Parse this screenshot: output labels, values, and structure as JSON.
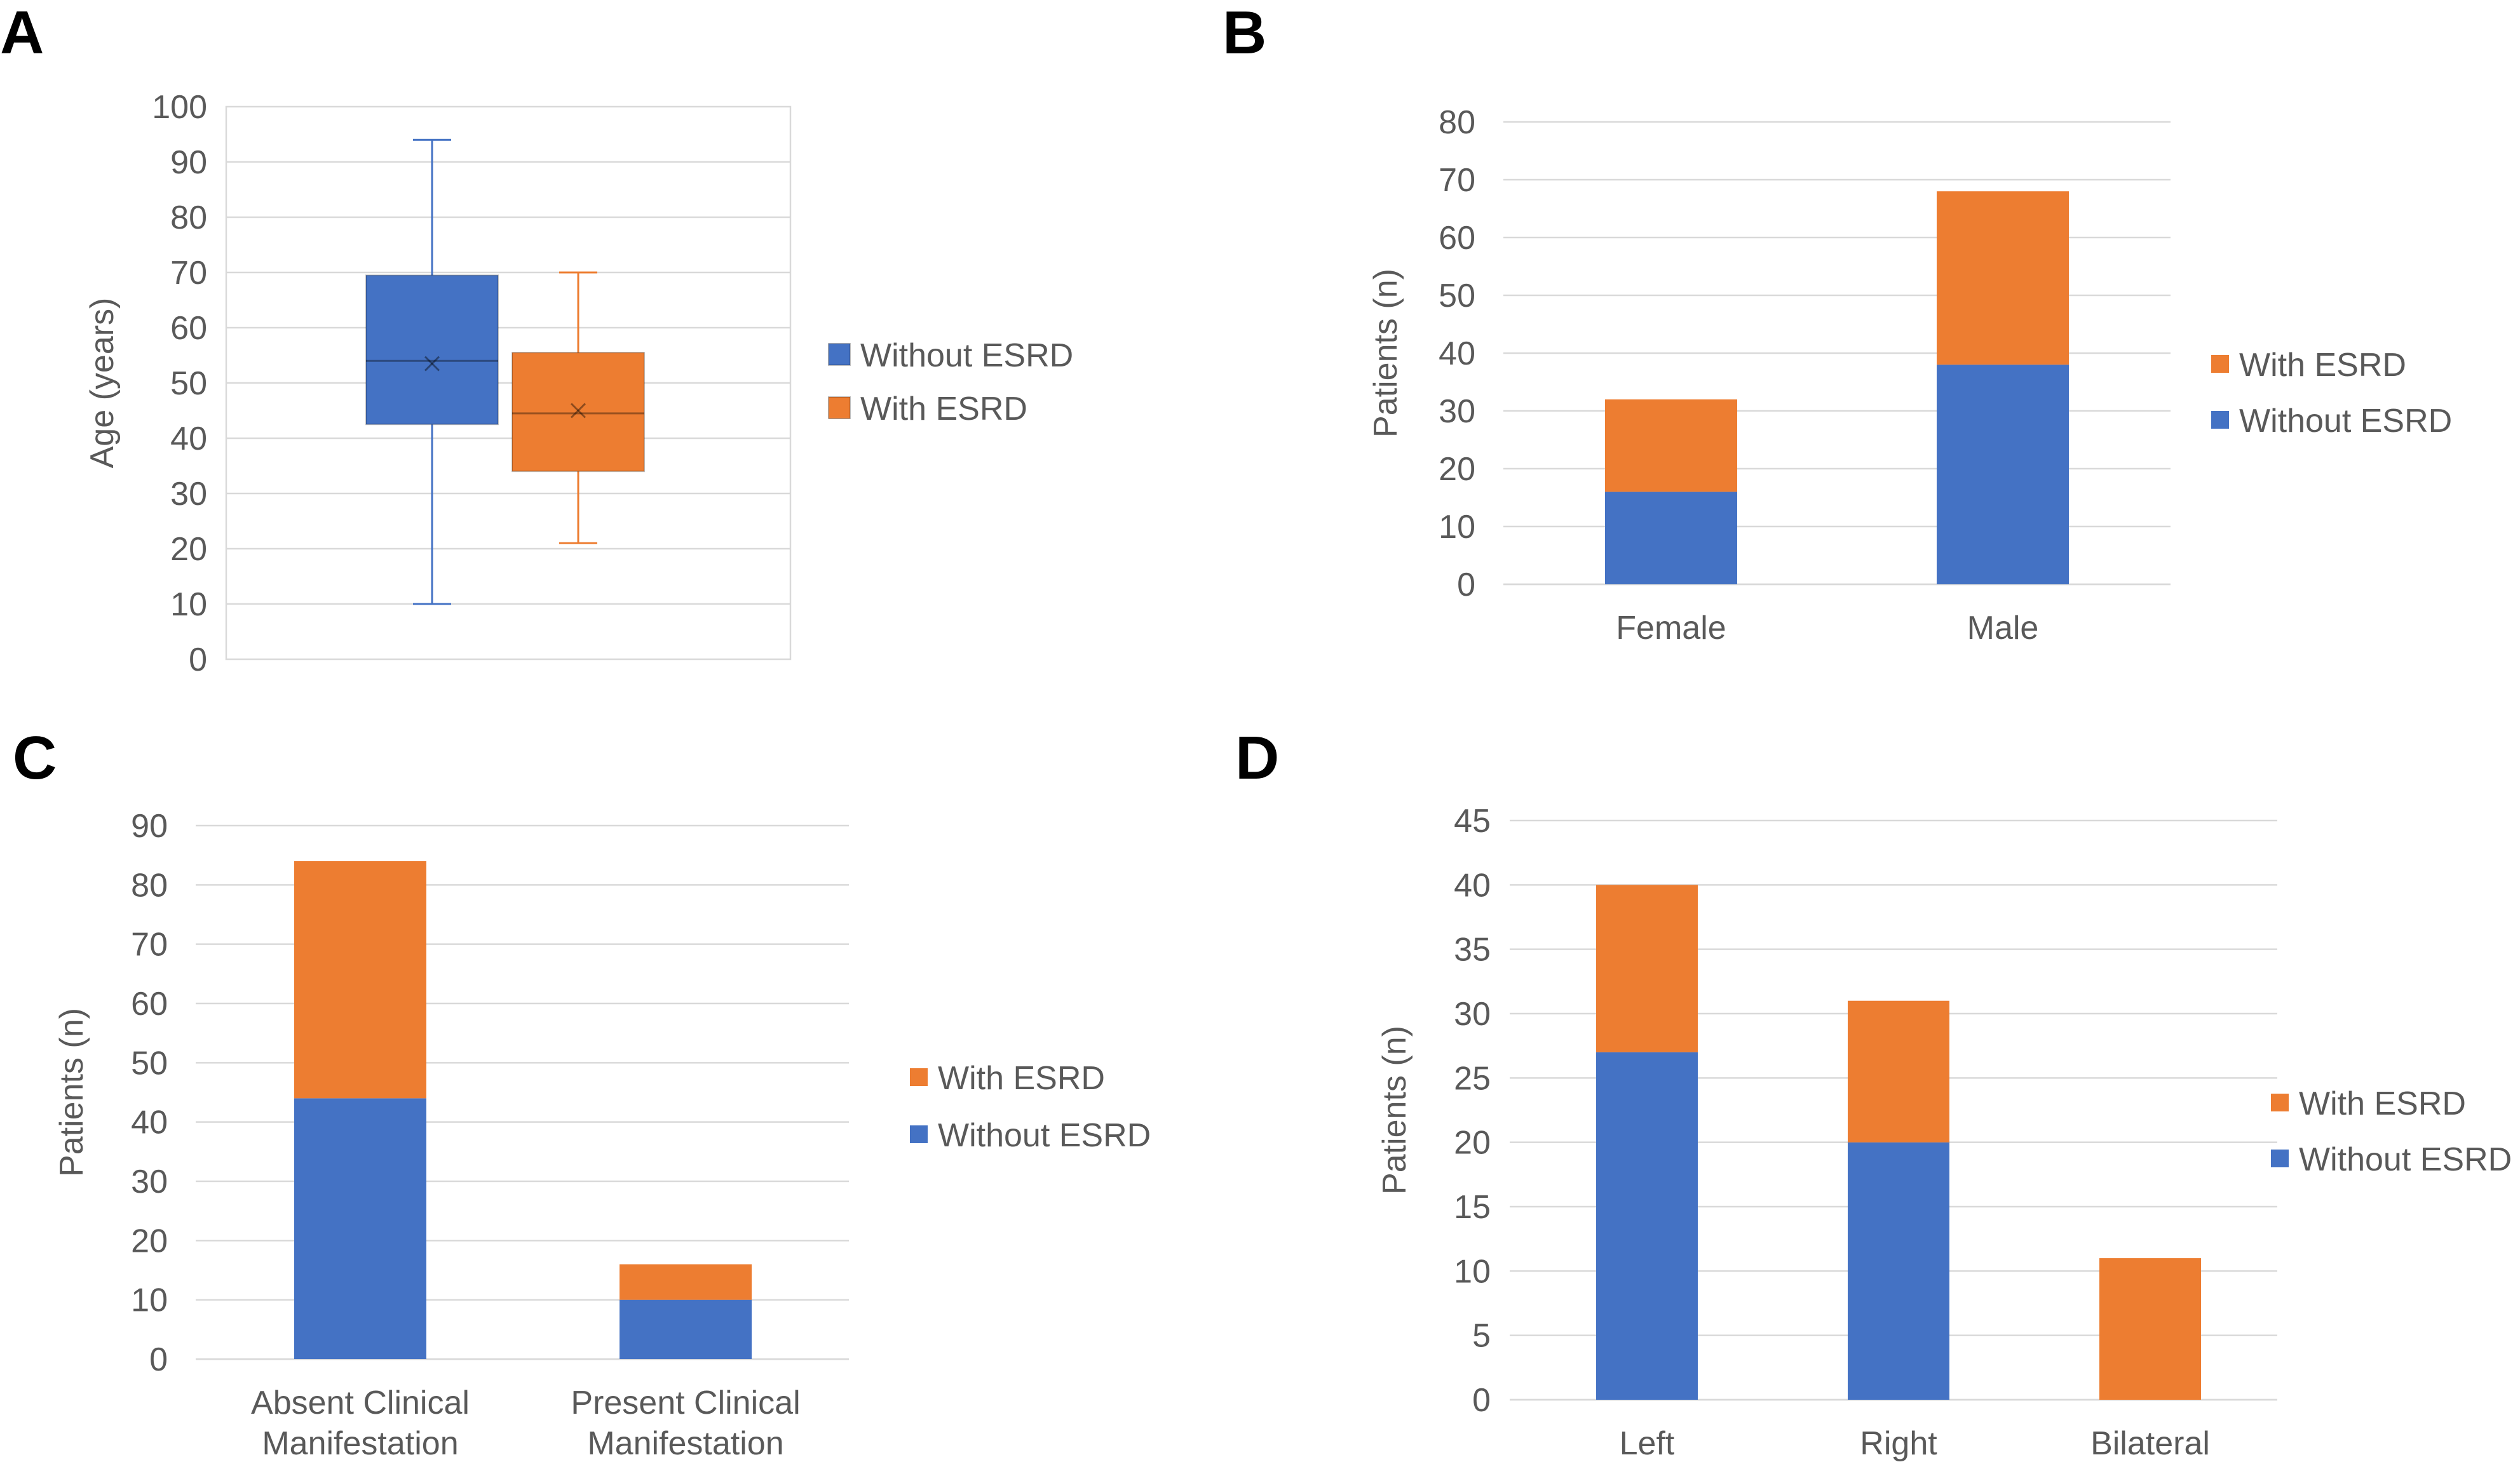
{
  "chart_data": [
    {
      "panel": "A",
      "type": "box",
      "ylabel": "Age (years)",
      "ylim": [
        0,
        100
      ],
      "yticks": [
        0,
        10,
        20,
        30,
        40,
        50,
        60,
        70,
        80,
        90,
        100
      ],
      "series": [
        {
          "name": "Without ESRD",
          "color": "#4472c4",
          "min": 10,
          "q1": 42.5,
          "median": 54,
          "q3": 69.5,
          "max": 94,
          "mean": 53.5
        },
        {
          "name": "With ESRD",
          "color": "#ed7d31",
          "min": 21,
          "q1": 34,
          "median": 44.5,
          "q3": 55.5,
          "max": 70,
          "mean": 45
        }
      ],
      "legend": [
        "Without ESRD",
        "With ESRD"
      ]
    },
    {
      "panel": "B",
      "type": "bar",
      "stacked": true,
      "ylabel": "Patients (n)",
      "ylim": [
        0,
        80
      ],
      "yticks": [
        0,
        10,
        20,
        30,
        40,
        50,
        60,
        70,
        80
      ],
      "categories": [
        [
          "Female"
        ],
        [
          "Male"
        ]
      ],
      "series": [
        {
          "name": "Without ESRD",
          "color": "#4472c4",
          "values": [
            16,
            38
          ]
        },
        {
          "name": "With ESRD",
          "color": "#ed7d31",
          "values": [
            16,
            30
          ]
        }
      ],
      "legend": [
        "With ESRD",
        "Without ESRD"
      ]
    },
    {
      "panel": "C",
      "type": "bar",
      "stacked": true,
      "ylabel": "Patients (n)",
      "ylim": [
        0,
        90
      ],
      "yticks": [
        0,
        10,
        20,
        30,
        40,
        50,
        60,
        70,
        80,
        90
      ],
      "categories": [
        [
          "Absent Clinical",
          "Manifestation"
        ],
        [
          "Present Clinical",
          "Manifestation"
        ]
      ],
      "series": [
        {
          "name": "Without ESRD",
          "color": "#4472c4",
          "values": [
            44,
            10
          ]
        },
        {
          "name": "With ESRD",
          "color": "#ed7d31",
          "values": [
            40,
            6
          ]
        }
      ],
      "legend": [
        "With ESRD",
        "Without ESRD"
      ]
    },
    {
      "panel": "D",
      "type": "bar",
      "stacked": true,
      "ylabel": "Patients (n)",
      "ylim": [
        0,
        45
      ],
      "yticks": [
        0,
        5,
        10,
        15,
        20,
        25,
        30,
        35,
        40,
        45
      ],
      "categories": [
        [
          "Left"
        ],
        [
          "Right"
        ],
        [
          "Bilateral"
        ]
      ],
      "series": [
        {
          "name": "Without ESRD",
          "color": "#4472c4",
          "values": [
            27,
            20,
            0
          ]
        },
        {
          "name": "With ESRD",
          "color": "#ed7d31",
          "values": [
            13,
            11,
            11
          ]
        }
      ],
      "legend": [
        "With ESRD",
        "Without ESRD"
      ]
    }
  ]
}
